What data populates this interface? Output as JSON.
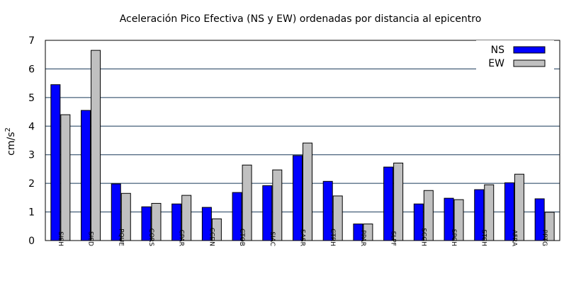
{
  "chart_data": {
    "type": "bar",
    "title": "Aceleración Pico Efectiva (NS y EW) ordenadas por distancia al epicentro",
    "ylabel": "cm/s",
    "ylabel_sup": "2",
    "xlabel": "",
    "ylim": [
      0,
      7
    ],
    "yticks": [
      "0",
      "1",
      "2",
      "3",
      "4",
      "5",
      "6",
      "7"
    ],
    "grid": "horizontal",
    "legend_position": "top-right",
    "categories": [
      "SISH",
      "SISD",
      "PQUE",
      "CORS",
      "CPAR",
      "CCDN",
      "CTOB",
      "SIAC",
      "SASR",
      "CTRH",
      "PPAR",
      "SLPF",
      "SCGH",
      "SPCH",
      "STCH",
      "AFRA",
      "PPTG"
    ],
    "series": [
      {
        "name": "NS",
        "color": "#0000ff",
        "values": [
          5.45,
          4.55,
          1.98,
          1.18,
          1.28,
          1.16,
          1.68,
          1.92,
          2.97,
          2.07,
          0.58,
          2.57,
          1.28,
          1.48,
          1.78,
          2.02,
          1.46
        ]
      },
      {
        "name": "EW",
        "color": "#c0c0c0",
        "values": [
          4.4,
          6.65,
          1.65,
          1.3,
          1.58,
          0.76,
          2.64,
          2.47,
          3.41,
          1.56,
          0.58,
          2.71,
          1.75,
          1.43,
          1.95,
          2.32,
          0.99
        ]
      }
    ]
  }
}
